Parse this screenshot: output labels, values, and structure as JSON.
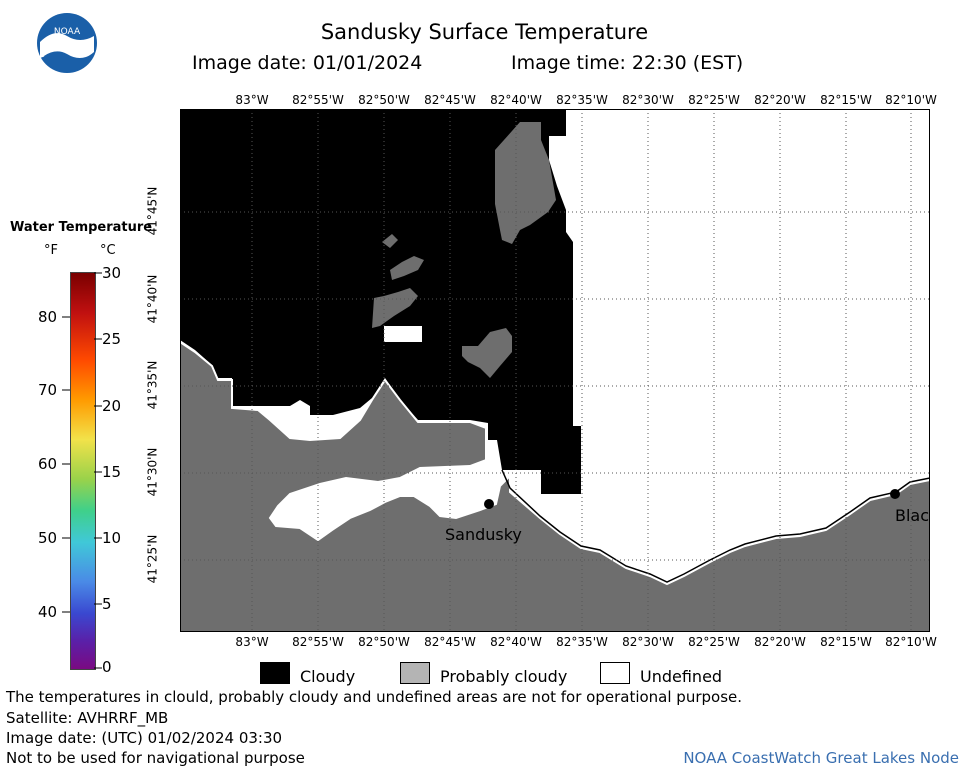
{
  "header": {
    "title": "Sandusky Surface Temperature",
    "image_date": "Image date: 01/01/2024",
    "image_time": "Image time: 22:30 (EST)"
  },
  "logo": {
    "text": "NOAA"
  },
  "map": {
    "lon_labels": [
      "83°W",
      "82°55'W",
      "82°50'W",
      "82°45'W",
      "82°40'W",
      "82°35'W",
      "82°30'W",
      "82°25'W",
      "82°20'W",
      "82°15'W",
      "82°10'W"
    ],
    "lat_labels": [
      "41°45'N",
      "41°40'N",
      "41°35'N",
      "41°30'N",
      "41°25'N"
    ],
    "places": [
      {
        "name": "Sandusky"
      },
      {
        "name": "Blac"
      }
    ],
    "colors": {
      "cloudy": "#000000",
      "probably_cloudy": "#6e6e6e",
      "undefined": "#ffffff",
      "grid": "#555555"
    }
  },
  "colorbar": {
    "title": "Water Temperature",
    "unit_f": "°F",
    "unit_c": "°C",
    "f_ticks": [
      "80",
      "70",
      "60",
      "50",
      "40"
    ],
    "c_ticks": [
      "30",
      "25",
      "20",
      "15",
      "10",
      "5",
      "0"
    ]
  },
  "legend": {
    "cloudy": "Cloudy",
    "probably_cloudy": "Probably cloudy",
    "undefined": "Undefined"
  },
  "footer": {
    "disclaimer": "The temperatures in clould, probably cloudy and undefined areas are not for operational purpose.",
    "satellite": "Satellite: AVHRRF_MB",
    "utc_date": "Image date: (UTC) 01/02/2024  03:30",
    "nav_warning": "Not to be used for navigational purpose",
    "credit": "NOAA CoastWatch Great Lakes Node"
  }
}
